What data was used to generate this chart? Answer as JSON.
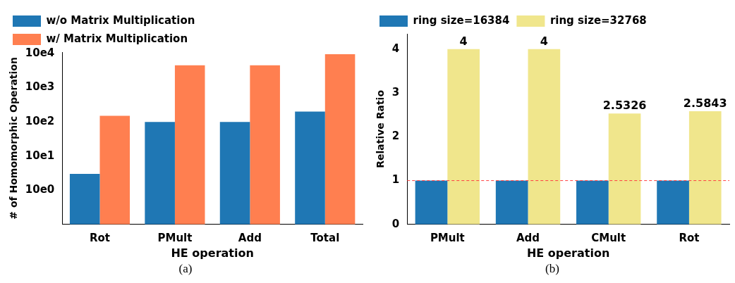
{
  "chart_data": [
    {
      "type": "bar",
      "categories": [
        "Rot",
        "PMult",
        "Add",
        "Total"
      ],
      "xlabel": "HE operation",
      "ylabel": "# of Homomorphic Operation",
      "log": "y",
      "ylim": [
        1,
        110000
      ],
      "yticks": [
        {
          "value": 10,
          "label": "10e0"
        },
        {
          "value": 100,
          "label": "10e1"
        },
        {
          "value": 1000,
          "label": "10e2"
        },
        {
          "value": 10000,
          "label": "10e3"
        },
        {
          "value": 100000,
          "label": "10e4"
        }
      ],
      "legend": "top left",
      "grid": false,
      "annotations": [
        "(a)"
      ],
      "series": [
        {
          "name": "w/o Matrix Multiplication",
          "color": "#1f77b4",
          "values": [
            30,
            1000,
            1000,
            2000
          ]
        },
        {
          "name": "w/ Matrix Multiplication",
          "color": "#ff7f50",
          "values": [
            1500,
            45000,
            45000,
            95000
          ]
        }
      ]
    },
    {
      "type": "bar",
      "categories": [
        "PMult",
        "Add",
        "CMult",
        "Rot"
      ],
      "xlabel": "HE operation",
      "ylabel": "Relative Ratio",
      "ylim": [
        0,
        4.35
      ],
      "yticks": [
        0,
        1,
        2,
        3,
        4
      ],
      "legend": "top left",
      "grid": false,
      "annotations": [
        "(b)"
      ],
      "ref_lines": [
        {
          "axis": "y",
          "value": 1,
          "color": "#ff4040",
          "line_style": "dashed"
        }
      ],
      "series": [
        {
          "name": "ring size=16384",
          "color": "#1f77b4",
          "values": [
            1,
            1,
            1,
            1
          ]
        },
        {
          "name": "ring size=32768",
          "color": "#f0e68c",
          "values": [
            4,
            4,
            2.5326,
            2.5843
          ],
          "value_labels": [
            "4",
            "4",
            "2.5326",
            "2.5843"
          ]
        }
      ]
    }
  ]
}
